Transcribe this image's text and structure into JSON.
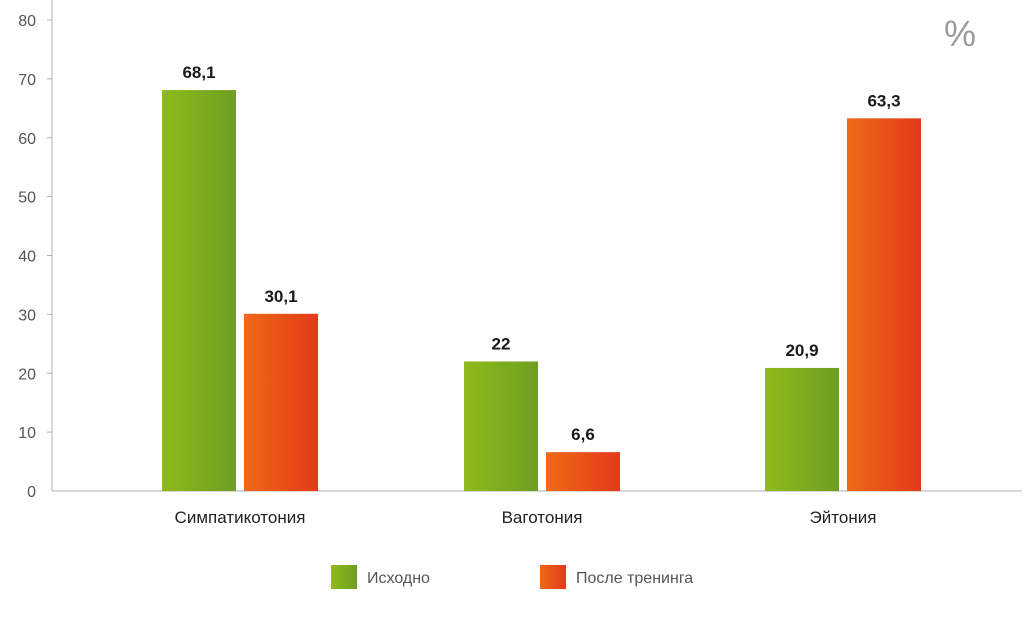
{
  "chart_data": {
    "type": "bar",
    "unit_label": "%",
    "categories": [
      "Симпатикотония",
      "Ваготония",
      "Эйтония"
    ],
    "series": [
      {
        "name": "Исходно",
        "values": [
          68.1,
          22,
          20.9
        ],
        "value_labels": [
          "68,1",
          "22",
          "20,9"
        ],
        "color": "#8fba1a",
        "color_dark": "#6e9e22"
      },
      {
        "name": "После тренинга",
        "values": [
          30.1,
          6.6,
          63.3
        ],
        "value_labels": [
          "30,1",
          "6,6",
          "63,3"
        ],
        "color": "#ee6a16",
        "color_dark": "#e33a1a"
      }
    ],
    "yticks": [
      0,
      10,
      20,
      30,
      40,
      50,
      60,
      70,
      80
    ],
    "ylim": [
      0,
      80
    ],
    "grid": false,
    "legend_position": "bottom"
  }
}
